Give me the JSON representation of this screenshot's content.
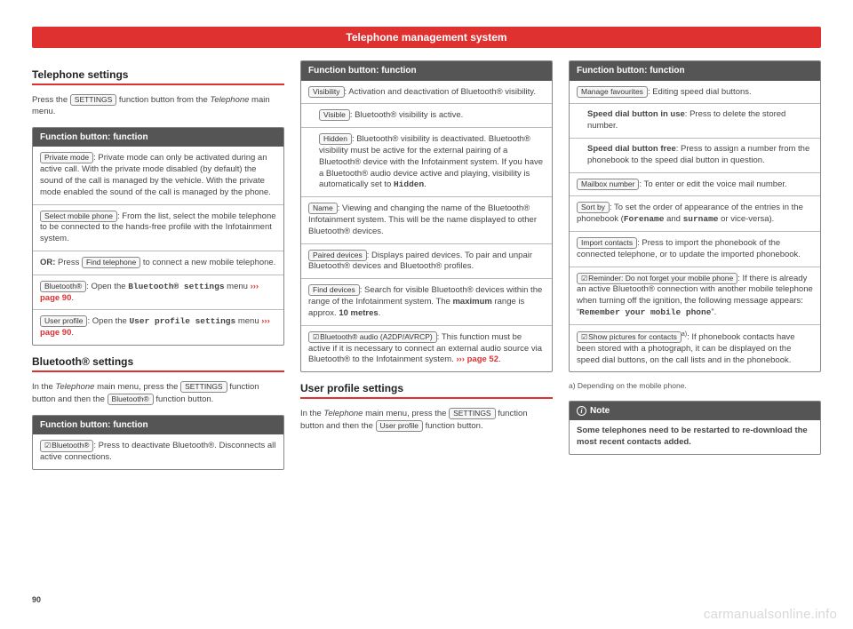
{
  "header": "Telephone management system",
  "page_number": "90",
  "watermark": "carmanualsonline.info",
  "colors": {
    "accent": "#e03131",
    "box_head": "#555555",
    "border": "#888888"
  },
  "col1": {
    "sec1_title": "Telephone settings",
    "sec1_intro_a": "Press the ",
    "sec1_intro_btn": "SETTINGS",
    "sec1_intro_b": " function button from the ",
    "sec1_intro_c": "Telephone",
    "sec1_intro_d": " main menu.",
    "box1_head": "Function button: function",
    "box1_i1_btn": "Private mode",
    "box1_i1_txt": ": Private mode can only be activated during an active call. With the private mode disabled (by default) the sound of the call is managed by the vehicle. With the private mode enabled the sound of the call is managed by the phone.",
    "box1_i2_btn": "Select mobile phone",
    "box1_i2_txt": ": From the list, select the mobile telephone to be connected to the hands-free profile with the Infotainment system.",
    "box1_i3_a": "OR:",
    "box1_i3_b": " Press ",
    "box1_i3_btn": "Find telephone",
    "box1_i3_c": " to connect a new mobile telephone.",
    "box1_i4_btn": "Bluetooth®",
    "box1_i4_a": ": Open the ",
    "box1_i4_mono": "Bluetooth® settings",
    "box1_i4_b": " menu ",
    "box1_i4_link": "››› page 90",
    "box1_i5_btn": "User profile",
    "box1_i5_a": ": Open the ",
    "box1_i5_mono": "User profile settings",
    "box1_i5_b": " menu ",
    "box1_i5_link": "››› page 90",
    "sec2_title": "Bluetooth® settings",
    "sec2_intro_a": "In the ",
    "sec2_intro_b": "Telephone",
    "sec2_intro_c": " main menu, press the ",
    "sec2_intro_btn1": "SETTINGS",
    "sec2_intro_d": " function button and then the ",
    "sec2_intro_btn2": "Bluetooth®",
    "sec2_intro_e": " function button.",
    "box2_head": "Function button: function",
    "box2_i1_btn": "Bluetooth®",
    "box2_i1_txt": ": Press to deactivate Bluetooth®. Disconnects all active connections."
  },
  "col2": {
    "box1_head": "Function button: function",
    "i1_btn": "Visibility",
    "i1_txt": ": Activation and deactivation of Bluetooth® visibility.",
    "i2_btn": "Visible",
    "i2_txt": ": Bluetooth® visibility is active.",
    "i3_btn": "Hidden",
    "i3_txt_a": ": Bluetooth® visibility is deactivated. Bluetooth® visibility must be active for the external pairing of a Bluetooth® device with the Infotainment system. If you have a Bluetooth® audio device active and playing, visibility is automatically set to ",
    "i3_mono": "Hidden",
    "i3_txt_b": ".",
    "i4_btn": "Name",
    "i4_txt": ": Viewing and changing the name of the Bluetooth® Infotainment system. This will be the name displayed to other Bluetooth® devices.",
    "i5_btn": "Paired devices",
    "i5_txt": ": Displays paired devices. To pair and unpair Bluetooth® devices and Bluetooth® profiles.",
    "i6_btn": "Find devices",
    "i6_txt_a": ": Search for visible Bluetooth® devices within the range of the Infotainment system. The ",
    "i6_b1": "maximum",
    "i6_txt_b": " range is approx. ",
    "i6_b2": "10 metres",
    "i6_txt_c": ".",
    "i7_btn": "Bluetooth® audio (A2DP/AVRCP)",
    "i7_txt_a": ": This function must be active if it is necessary to connect an external audio source via Bluetooth® to the Infotainment system. ",
    "i7_link": "››› page 52",
    "sec2_title": "User profile settings",
    "sec2_a": "In the ",
    "sec2_b": "Telephone",
    "sec2_c": " main menu, press the ",
    "sec2_btn1": "SETTINGS",
    "sec2_d": " function button and then the ",
    "sec2_btn2": "User profile",
    "sec2_e": " function button."
  },
  "col3": {
    "box_head": "Function button: function",
    "i1_btn": "Manage favourites",
    "i1_txt": ": Editing speed dial buttons.",
    "i2_b": "Speed dial button in use",
    "i2_txt": ": Press to delete the stored number.",
    "i3_b": "Speed dial button free",
    "i3_txt": ": Press to assign a number from the phonebook to the speed dial button in question.",
    "i4_btn": "Mailbox number",
    "i4_txt": ": To enter or edit the voice mail number.",
    "i5_btn": "Sort by",
    "i5_a": ": To set the order of appearance of the entries in the phonebook (",
    "i5_m1": "Forename",
    "i5_b": " and ",
    "i5_m2": "surname",
    "i5_c": " or vice-versa).",
    "i6_btn": "Import contacts",
    "i6_txt": ": Press to import the phonebook of the connected telephone, or to update the imported phonebook.",
    "i7_btn": "Reminder: Do not forget your mobile phone",
    "i7_a": ": If there is already an active Bluetooth® connection with another mobile telephone when turning off the ignition, the following message appears: “",
    "i7_mono": "Remember your mobile phone",
    "i7_b": "”.",
    "i8_btn": "Show pictures for contacts",
    "i8_sup": "a)",
    "i8_txt": ": If phonebook contacts have been stored with a photograph, it can be displayed on the speed dial buttons, on the call lists and in the phonebook.",
    "footnote": "a) Depending on the mobile phone.",
    "note_head": "Note",
    "note_body": "Some telephones need to be restarted to re-download the most recent contacts added."
  }
}
